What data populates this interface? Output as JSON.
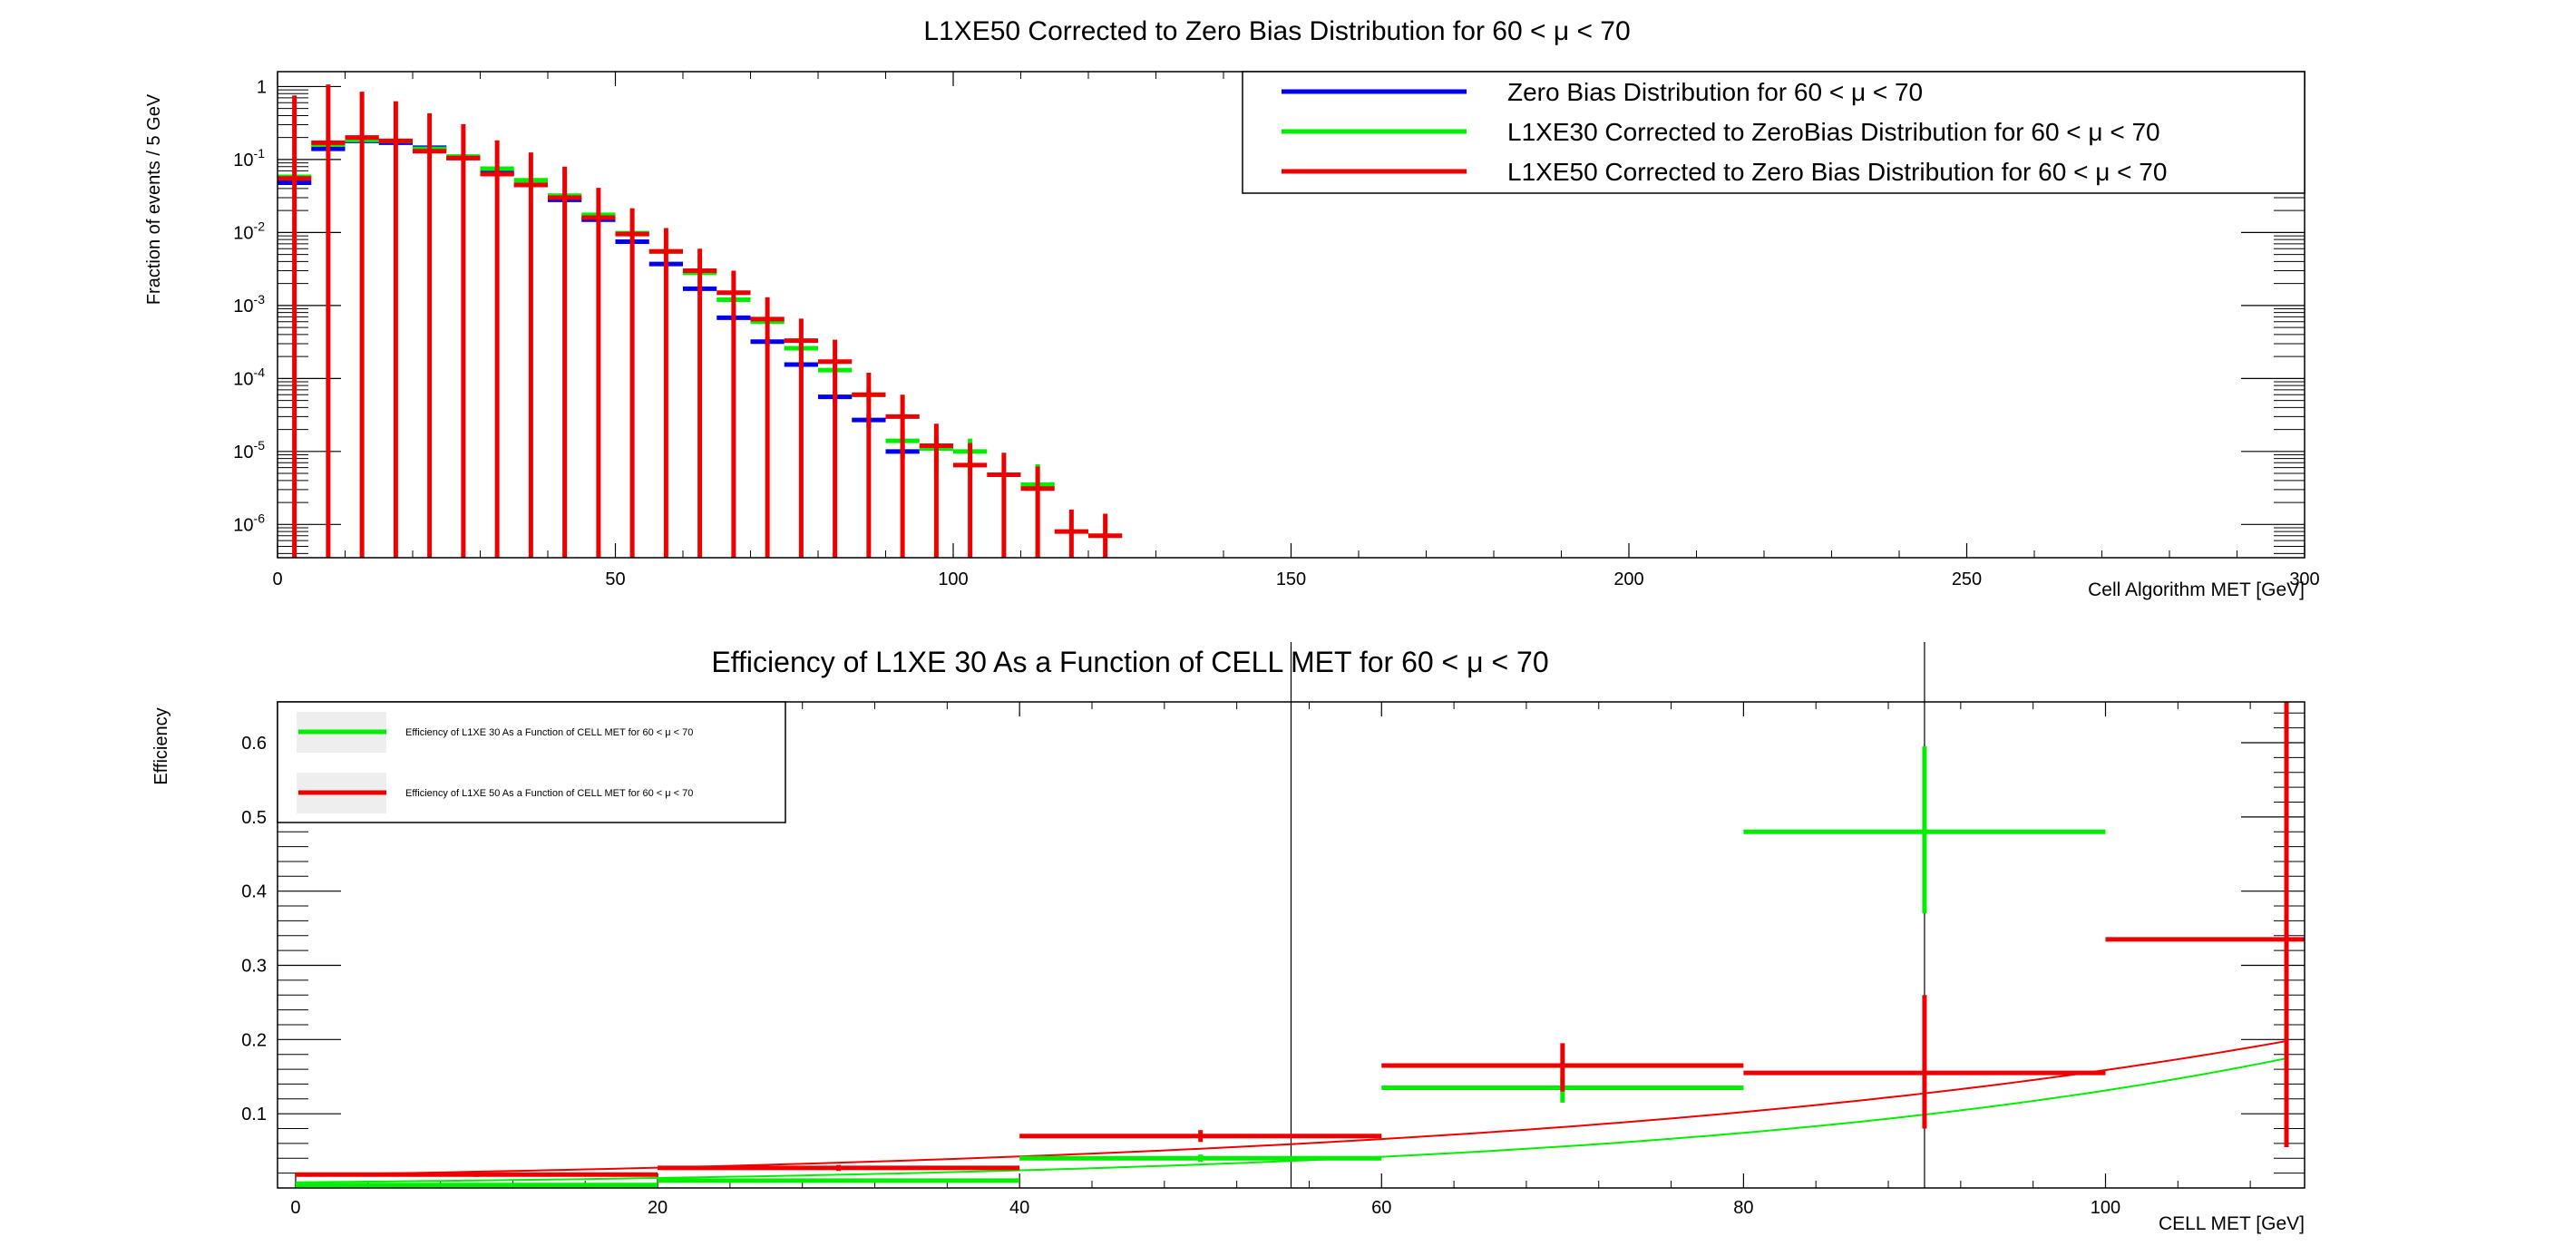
{
  "chart_data": [
    {
      "type": "line",
      "title": "L1XE50 Corrected to Zero Bias Distribution for 60 < μ < 70",
      "xlabel": "Cell Algorithm MET [GeV]",
      "ylabel": "Fraction of events / 5 GeV",
      "xlim": [
        0,
        300
      ],
      "ylim": [
        3.5e-07,
        1.6
      ],
      "yscale": "log",
      "grid": false,
      "legend_position": "top-right",
      "x_ticks": [
        0,
        50,
        100,
        150,
        200,
        250,
        300
      ],
      "x_tick_labels": [
        "0",
        "50",
        "100",
        "150",
        "200",
        "250",
        "300"
      ],
      "y_ticks": [
        1,
        0.1,
        0.01,
        0.001,
        0.0001,
        1e-05,
        1e-06
      ],
      "y_tick_labels": [
        {
          "base": "1",
          "exp": ""
        },
        {
          "base": "10",
          "exp": "-1"
        },
        {
          "base": "10",
          "exp": "-2"
        },
        {
          "base": "10",
          "exp": "-3"
        },
        {
          "base": "10",
          "exp": "-4"
        },
        {
          "base": "10",
          "exp": "-5"
        },
        {
          "base": "10",
          "exp": "-6"
        }
      ],
      "series": [
        {
          "name": "Zero Bias Distribution for 60 < μ < 70",
          "color": "#0000ee",
          "points": [
            {
              "x": 2.5,
              "y": 0.048,
              "err": 0.003
            },
            {
              "x": 7.5,
              "y": 0.14,
              "err": 0.008
            },
            {
              "x": 12.5,
              "y": 0.18,
              "err": 0.01
            },
            {
              "x": 17.5,
              "y": 0.17,
              "err": 0.01
            },
            {
              "x": 22.5,
              "y": 0.145,
              "err": 0.008
            },
            {
              "x": 27.5,
              "y": 0.105,
              "err": 0.006
            },
            {
              "x": 32.5,
              "y": 0.065,
              "err": 0.004
            },
            {
              "x": 37.5,
              "y": 0.045,
              "err": 0.003
            },
            {
              "x": 42.5,
              "y": 0.028,
              "err": 0.002
            },
            {
              "x": 47.5,
              "y": 0.015,
              "err": 0.001
            },
            {
              "x": 52.5,
              "y": 0.0075,
              "err": 0.0005
            },
            {
              "x": 57.5,
              "y": 0.0037,
              "err": 0.0003
            },
            {
              "x": 62.5,
              "y": 0.0017,
              "err": 0.00015
            },
            {
              "x": 67.5,
              "y": 0.00068,
              "err": 8e-05
            },
            {
              "x": 72.5,
              "y": 0.00032,
              "err": 4e-05
            },
            {
              "x": 77.5,
              "y": 0.000155,
              "err": 2e-05
            },
            {
              "x": 82.5,
              "y": 5.6e-05,
              "err": 1e-05
            },
            {
              "x": 87.5,
              "y": 2.7e-05,
              "err": 6e-06
            },
            {
              "x": 92.5,
              "y": 1e-05,
              "err": 2e-06
            }
          ]
        },
        {
          "name": "L1XE30 Corrected to ZeroBias Distribution for 60 < μ < 70",
          "color": "#00ee00",
          "points": [
            {
              "x": 2.5,
              "y": 0.058,
              "err": 0.004
            },
            {
              "x": 7.5,
              "y": 0.16,
              "err": 0.01
            },
            {
              "x": 12.5,
              "y": 0.185,
              "err": 0.01
            },
            {
              "x": 17.5,
              "y": 0.18,
              "err": 0.01
            },
            {
              "x": 22.5,
              "y": 0.14,
              "err": 0.008
            },
            {
              "x": 27.5,
              "y": 0.11,
              "err": 0.006
            },
            {
              "x": 32.5,
              "y": 0.075,
              "err": 0.005
            },
            {
              "x": 37.5,
              "y": 0.052,
              "err": 0.003
            },
            {
              "x": 42.5,
              "y": 0.032,
              "err": 0.002
            },
            {
              "x": 47.5,
              "y": 0.0175,
              "err": 0.001
            },
            {
              "x": 52.5,
              "y": 0.0098,
              "err": 0.0007
            },
            {
              "x": 57.5,
              "y": 0.0055,
              "err": 0.0004
            },
            {
              "x": 62.5,
              "y": 0.0028,
              "err": 0.0002
            },
            {
              "x": 67.5,
              "y": 0.0012,
              "err": 0.0001
            },
            {
              "x": 72.5,
              "y": 0.0006,
              "err": 6e-05
            },
            {
              "x": 77.5,
              "y": 0.00026,
              "err": 3e-05
            },
            {
              "x": 82.5,
              "y": 0.00013,
              "err": 2e-05
            },
            {
              "x": 87.5,
              "y": 6e-05,
              "err": 1.5e-05
            },
            {
              "x": 92.5,
              "y": 1.4e-05,
              "err": 6e-06
            },
            {
              "x": 97.5,
              "y": 1.1e-05,
              "err": 6e-06
            },
            {
              "x": 102.5,
              "y": 1e-05,
              "err": 5e-06
            },
            {
              "x": 112.5,
              "y": 3.5e-06,
              "err": 3.2e-06
            }
          ]
        },
        {
          "name": "L1XE50 Corrected to Zero Bias Distribution for 60 < μ < 70",
          "color": "#ee0000",
          "points": [
            {
              "x": 2.5,
              "y": 0.055,
              "err": 0.7
            },
            {
              "x": 7.5,
              "y": 0.17,
              "err": 0.9
            },
            {
              "x": 12.5,
              "y": 0.2,
              "err": 0.65
            },
            {
              "x": 17.5,
              "y": 0.18,
              "err": 0.45
            },
            {
              "x": 22.5,
              "y": 0.13,
              "err": 0.3
            },
            {
              "x": 27.5,
              "y": 0.105,
              "err": 0.2
            },
            {
              "x": 32.5,
              "y": 0.063,
              "err": 0.12
            },
            {
              "x": 37.5,
              "y": 0.045,
              "err": 0.08
            },
            {
              "x": 42.5,
              "y": 0.03,
              "err": 0.05
            },
            {
              "x": 47.5,
              "y": 0.016,
              "err": 0.025
            },
            {
              "x": 52.5,
              "y": 0.0095,
              "err": 0.012
            },
            {
              "x": 57.5,
              "y": 0.0055,
              "err": 0.006
            },
            {
              "x": 62.5,
              "y": 0.003,
              "err": 0.003
            },
            {
              "x": 67.5,
              "y": 0.0015,
              "err": 0.0015
            },
            {
              "x": 72.5,
              "y": 0.00065,
              "err": 0.00065
            },
            {
              "x": 77.5,
              "y": 0.00033,
              "err": 0.00033
            },
            {
              "x": 82.5,
              "y": 0.00017,
              "err": 0.00017
            },
            {
              "x": 87.5,
              "y": 6e-05,
              "err": 6e-05
            },
            {
              "x": 92.5,
              "y": 3e-05,
              "err": 3e-05
            },
            {
              "x": 97.5,
              "y": 1.2e-05,
              "err": 1.2e-05
            },
            {
              "x": 102.5,
              "y": 6.5e-06,
              "err": 6.5e-06
            },
            {
              "x": 107.5,
              "y": 4.8e-06,
              "err": 4.8e-06
            },
            {
              "x": 112.5,
              "y": 3.1e-06,
              "err": 3.1e-06
            },
            {
              "x": 117.5,
              "y": 8e-07,
              "err": 8e-07
            },
            {
              "x": 122.5,
              "y": 7e-07,
              "err": 7e-07
            }
          ]
        }
      ]
    },
    {
      "type": "line",
      "title": "Efficiency of L1XE 30 As a Function of CELL MET for 60 < μ < 70",
      "xlabel": "CELL MET [GeV]",
      "ylabel": "Efficiency",
      "xlim": [
        -1,
        111
      ],
      "ylim": [
        0,
        0.655
      ],
      "grid": false,
      "legend_position": "top-left",
      "x_ticks": [
        0,
        20,
        40,
        60,
        80,
        100
      ],
      "x_tick_labels": [
        "0",
        "20",
        "40",
        "60",
        "80",
        "100"
      ],
      "y_ticks": [
        0.1,
        0.2,
        0.3,
        0.4,
        0.5,
        0.6
      ],
      "y_tick_labels": [
        "0.1",
        "0.2",
        "0.3",
        "0.4",
        "0.5",
        "0.6"
      ],
      "vertical_lines_x": [
        55,
        90
      ],
      "series": [
        {
          "name": "Efficiency of L1XE 30 As a Function of CELL MET for 60 < μ < 70",
          "color": "#00ee00",
          "points": [
            {
              "x": 10,
              "xerr": 10,
              "y": 0.004,
              "ylo": 0.003,
              "yhi": 0.005
            },
            {
              "x": 30,
              "xerr": 10,
              "y": 0.01,
              "ylo": 0.008,
              "yhi": 0.012
            },
            {
              "x": 50,
              "xerr": 10,
              "y": 0.04,
              "ylo": 0.035,
              "yhi": 0.045
            },
            {
              "x": 70,
              "xerr": 10,
              "y": 0.135,
              "ylo": 0.115,
              "yhi": 0.15
            },
            {
              "x": 90,
              "xerr": 10,
              "y": 0.48,
              "ylo": 0.37,
              "yhi": 0.595
            }
          ],
          "fit": {
            "a": 0.0076,
            "b": 2.85,
            "x_from": 0,
            "x_to": 110
          }
        },
        {
          "name": "Efficiency of L1XE 50 As a Function of CELL MET for 60 < μ < 70",
          "color": "#ee0000",
          "points": [
            {
              "x": 10,
              "xerr": 10,
              "y": 0.018,
              "ylo": 0.015,
              "yhi": 0.021
            },
            {
              "x": 30,
              "xerr": 10,
              "y": 0.027,
              "ylo": 0.023,
              "yhi": 0.031
            },
            {
              "x": 50,
              "xerr": 10,
              "y": 0.07,
              "ylo": 0.062,
              "yhi": 0.078
            },
            {
              "x": 70,
              "xerr": 10,
              "y": 0.165,
              "ylo": 0.13,
              "yhi": 0.195
            },
            {
              "x": 90,
              "xerr": 10,
              "y": 0.155,
              "ylo": 0.08,
              "yhi": 0.26
            },
            {
              "x": 110,
              "xerr": 10,
              "y": 0.335,
              "ylo": 0.055,
              "yhi": 0.655
            }
          ],
          "fit": {
            "a": 0.0176,
            "b": 2.2,
            "x_from": 0,
            "x_to": 110
          }
        }
      ]
    }
  ]
}
